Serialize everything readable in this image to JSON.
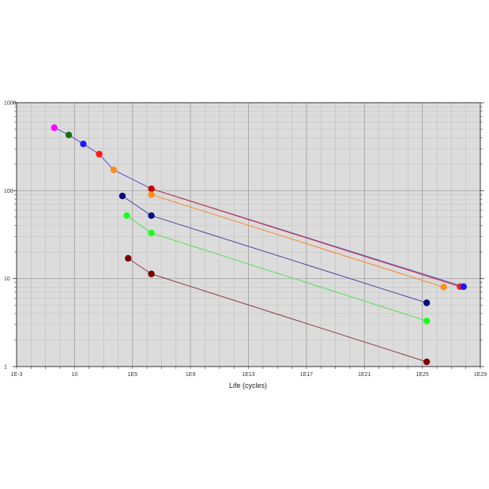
{
  "chart_data": {
    "type": "line",
    "xlabel": "Life (cycles)",
    "ylabel": "",
    "x_scale": "log",
    "y_scale": "log",
    "xlim": [
      0.001,
      1e+29
    ],
    "ylim": [
      1,
      1000
    ],
    "x_ticks": [
      {
        "value": 0.001,
        "label": "1E-3"
      },
      {
        "value": 10,
        "label": "10"
      },
      {
        "value": 100000,
        "label": "1E5"
      },
      {
        "value": 1000000000.0,
        "label": "1E9"
      },
      {
        "value": 10000000000000.0,
        "label": "1E13"
      },
      {
        "value": 1e+17,
        "label": "1E17"
      },
      {
        "value": 1e+21,
        "label": "1E21"
      },
      {
        "value": 1e+25,
        "label": "1E25"
      },
      {
        "value": 1e+29,
        "label": "1E29"
      }
    ],
    "y_ticks": [
      {
        "value": 1,
        "label": "1"
      },
      {
        "value": 10,
        "label": "10"
      },
      {
        "value": 100,
        "label": "100"
      },
      {
        "value": 1000,
        "label": "1000"
      }
    ],
    "grid": true,
    "legend": "none",
    "plot_background": "#dcdcdc",
    "series": [
      {
        "color": "#5a4fc4",
        "points": [
          [
            0.4,
            520
          ],
          [
            4,
            430
          ],
          [
            40,
            340
          ],
          [
            500,
            260
          ],
          [
            5000,
            172
          ],
          [
            2000000,
            105
          ],
          [
            7e+27,
            8.1
          ]
        ]
      },
      {
        "color": "#c8323c",
        "points": [
          [
            2000000,
            105
          ],
          [
            4e+27,
            8.1
          ]
        ]
      },
      {
        "color": "#f5882a",
        "points": [
          [
            2000000,
            90
          ],
          [
            3e+26,
            8.0
          ]
        ]
      },
      {
        "color": "#4a4a9c",
        "points": [
          [
            20000,
            87
          ],
          [
            2000000,
            52
          ],
          [
            2e+25,
            5.3
          ]
        ]
      },
      {
        "color": "#55dd55",
        "points": [
          [
            40000,
            52
          ],
          [
            2000000,
            33
          ],
          [
            2e+25,
            3.3
          ]
        ]
      },
      {
        "color": "#8c3c46",
        "points": [
          [
            50000,
            17
          ],
          [
            2000000,
            11.3
          ],
          [
            2e+25,
            1.13
          ]
        ]
      }
    ],
    "markers": [
      {
        "x": 0.4,
        "y": 520,
        "color": "#ff00ff"
      },
      {
        "x": 4,
        "y": 430,
        "color": "#1a6b1a"
      },
      {
        "x": 40,
        "y": 340,
        "color": "#1a1aff"
      },
      {
        "x": 500,
        "y": 260,
        "color": "#ff1a1a"
      },
      {
        "x": 5000,
        "y": 172,
        "color": "#ff8c1a"
      },
      {
        "x": 2000000,
        "y": 105,
        "color": "#c80000"
      },
      {
        "x": 2000000,
        "y": 90,
        "color": "#ff8c1a"
      },
      {
        "x": 20000,
        "y": 87,
        "color": "#0a0a80"
      },
      {
        "x": 2000000,
        "y": 52,
        "color": "#0a0a80"
      },
      {
        "x": 40000,
        "y": 52,
        "color": "#1aff1a"
      },
      {
        "x": 2000000,
        "y": 33,
        "color": "#1aff1a"
      },
      {
        "x": 50000,
        "y": 17,
        "color": "#7a0000"
      },
      {
        "x": 2000000,
        "y": 11.3,
        "color": "#7a0000"
      },
      {
        "x": 3e+26,
        "y": 8.0,
        "color": "#ff8c1a"
      },
      {
        "x": 4e+27,
        "y": 8.1,
        "color": "#ff1a1a"
      },
      {
        "x": 7e+27,
        "y": 8.1,
        "color": "#1a1aff"
      },
      {
        "x": 2e+25,
        "y": 5.3,
        "color": "#0a0a80"
      },
      {
        "x": 2e+25,
        "y": 3.3,
        "color": "#1aff1a"
      },
      {
        "x": 2e+25,
        "y": 1.13,
        "color": "#7a0000"
      }
    ]
  }
}
